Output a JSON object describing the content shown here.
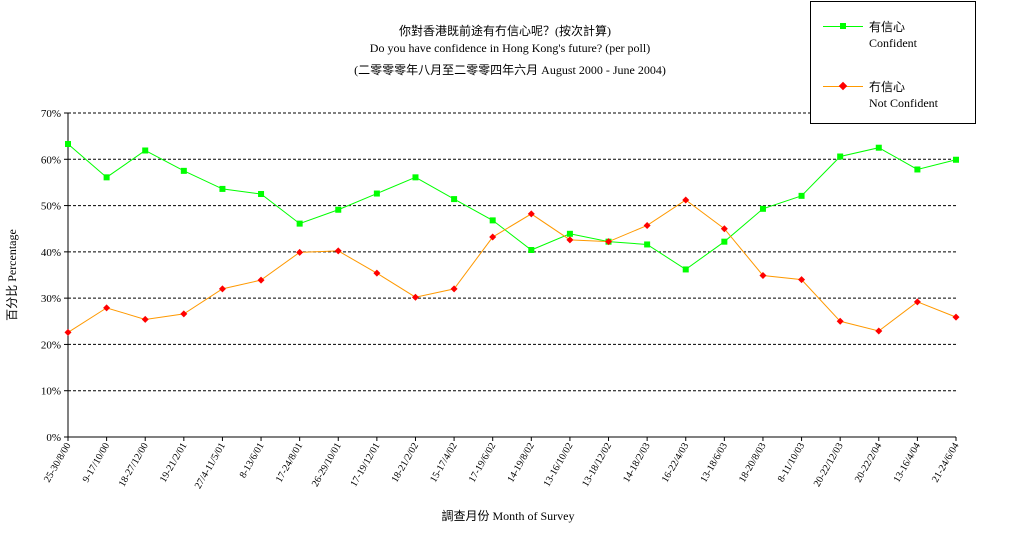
{
  "titles": {
    "line1": "你對香港既前途有冇信心呢？(按次計算)",
    "line2": "Do you have confidence in Hong Kong's future? (per poll)",
    "line3": "(二零零零年八月至二零零四年六月 August 2000 - June 2004)"
  },
  "legend": {
    "items": [
      {
        "zh": "有信心",
        "en": "Confident",
        "color": "#00ff00",
        "marker": "square"
      },
      {
        "zh": "冇信心",
        "en": "Not Confident",
        "color": "#ff0000",
        "line_color": "#ff9900",
        "marker": "diamond"
      }
    ]
  },
  "colors": {
    "confident_line": "#00ff00",
    "confident_marker": "#00ff00",
    "not_confident_line": "#ff9900",
    "not_confident_marker": "#ff0000",
    "gridline": "#000000"
  },
  "chart_data": {
    "type": "line",
    "xlabel": "調查月份 Month of Survey",
    "ylabel": "百分比 Percentage",
    "ylim": [
      0,
      70
    ],
    "yticks": [
      "0%",
      "10%",
      "20%",
      "30%",
      "40%",
      "50%",
      "60%",
      "70%"
    ],
    "grid": "horizontal dashed",
    "legend_position": "top-right",
    "categories": [
      "25-30/8/00",
      "9-17/10/00",
      "18-27/12/00",
      "19-21/2/01",
      "27/4-11/5/01",
      "8-13/6/01",
      "17-24/8/01",
      "26-29/10/01",
      "17-19/12/01",
      "18-21/2/02",
      "15-17/4/02",
      "17-19/6/02",
      "14-19/8/02",
      "13-16/10/02",
      "13-18/12/02",
      "14-18/2/03",
      "16-22/4/03",
      "13-18/6/03",
      "18-20/8/03",
      "8-11/10/03",
      "20-22/12/03",
      "20-22/2/04",
      "13-16/4/04",
      "21-24/6/04"
    ],
    "series": [
      {
        "name": "有信心 Confident",
        "values": [
          63.3,
          56.1,
          61.9,
          57.5,
          53.6,
          52.5,
          46.1,
          49.1,
          52.6,
          56.1,
          51.4,
          46.8,
          40.4,
          43.9,
          42.2,
          41.6,
          36.2,
          42.2,
          49.3,
          52.1,
          60.6,
          62.5,
          57.8,
          59.9
        ]
      },
      {
        "name": "冇信心 Not Confident",
        "values": [
          22.6,
          27.9,
          25.4,
          26.6,
          32.0,
          33.9,
          39.9,
          40.2,
          35.4,
          30.2,
          32.0,
          43.2,
          48.2,
          42.6,
          42.2,
          45.7,
          51.2,
          45.0,
          34.9,
          34.0,
          25.0,
          22.9,
          29.2,
          25.9
        ]
      }
    ]
  }
}
